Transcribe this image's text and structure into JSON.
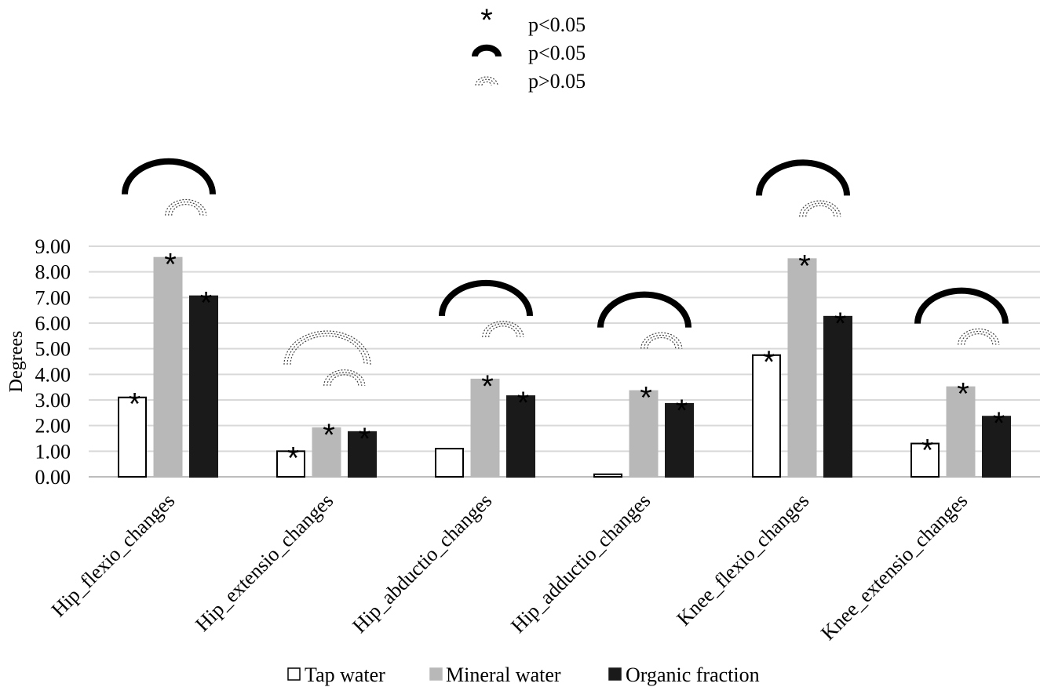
{
  "chart_data": {
    "type": "bar",
    "title": "",
    "xlabel": "",
    "ylabel": "Degrees",
    "ylim": [
      0,
      9
    ],
    "ytick_labels": [
      "0.00",
      "1.00",
      "2.00",
      "3.00",
      "4.00",
      "5.00",
      "6.00",
      "7.00",
      "8.00",
      "9.00"
    ],
    "grid": true,
    "legend_position": "bottom",
    "categories": [
      "Hip_flexio_changes",
      "Hip_extensio_changes",
      "Hip_abductio_changes",
      "Hip_adductio_changes",
      "Knee_flexio_changes",
      "Knee_extensio_changes"
    ],
    "series": [
      {
        "name": "Tap water",
        "values": [
          3.1,
          1.0,
          1.1,
          0.1,
          4.75,
          1.3
        ],
        "fill": "#ffffff",
        "stroke": "#000000"
      },
      {
        "name": "Mineral water",
        "values": [
          8.55,
          1.9,
          3.8,
          3.35,
          8.5,
          3.5
        ],
        "fill": "#b8b8b8",
        "stroke": "#b8b8b8"
      },
      {
        "name": "Organic fraction",
        "values": [
          7.05,
          1.75,
          3.15,
          2.85,
          6.25,
          2.35
        ],
        "fill": "#1a1a1a",
        "stroke": "#1a1a1a"
      }
    ],
    "significance_stars": [
      [
        true,
        true,
        true
      ],
      [
        true,
        true,
        true
      ],
      [
        false,
        true,
        true
      ],
      [
        false,
        true,
        true
      ],
      [
        true,
        true,
        true
      ],
      [
        true,
        true,
        true
      ]
    ],
    "star_symbol": "*",
    "brackets": [
      {
        "category": 0,
        "outer": "solid",
        "inner": "dotted"
      },
      {
        "category": 1,
        "outer": "dotted",
        "inner": "dotted"
      },
      {
        "category": 2,
        "outer": "solid",
        "inner": "dotted"
      },
      {
        "category": 3,
        "outer": "solid",
        "inner": "dotted"
      },
      {
        "category": 4,
        "outer": "solid",
        "inner": "dotted"
      },
      {
        "category": 5,
        "outer": "solid",
        "inner": "dotted"
      }
    ],
    "significance_legend": [
      {
        "symbol": "star",
        "label": "p<0.05"
      },
      {
        "symbol": "solid-arc",
        "label": "p<0.05"
      },
      {
        "symbol": "dotted-arc",
        "label": "p>0.05"
      }
    ]
  }
}
